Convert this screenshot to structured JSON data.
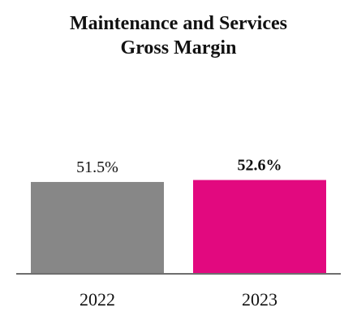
{
  "chart_data": {
    "type": "bar",
    "title_lines": [
      "Maintenance and Services",
      "Gross Margin"
    ],
    "categories": [
      "2022",
      "2023"
    ],
    "values": [
      51.5,
      52.6
    ],
    "value_labels": [
      "51.5%",
      "52.6%"
    ],
    "label_bold": [
      false,
      true
    ],
    "colors": [
      "#878787",
      "#e2097f"
    ],
    "baseline_color": "#6e6e6e",
    "xlabel": "",
    "ylabel": "",
    "ylim": [
      0,
      60
    ],
    "grid": false,
    "legend": "none"
  }
}
